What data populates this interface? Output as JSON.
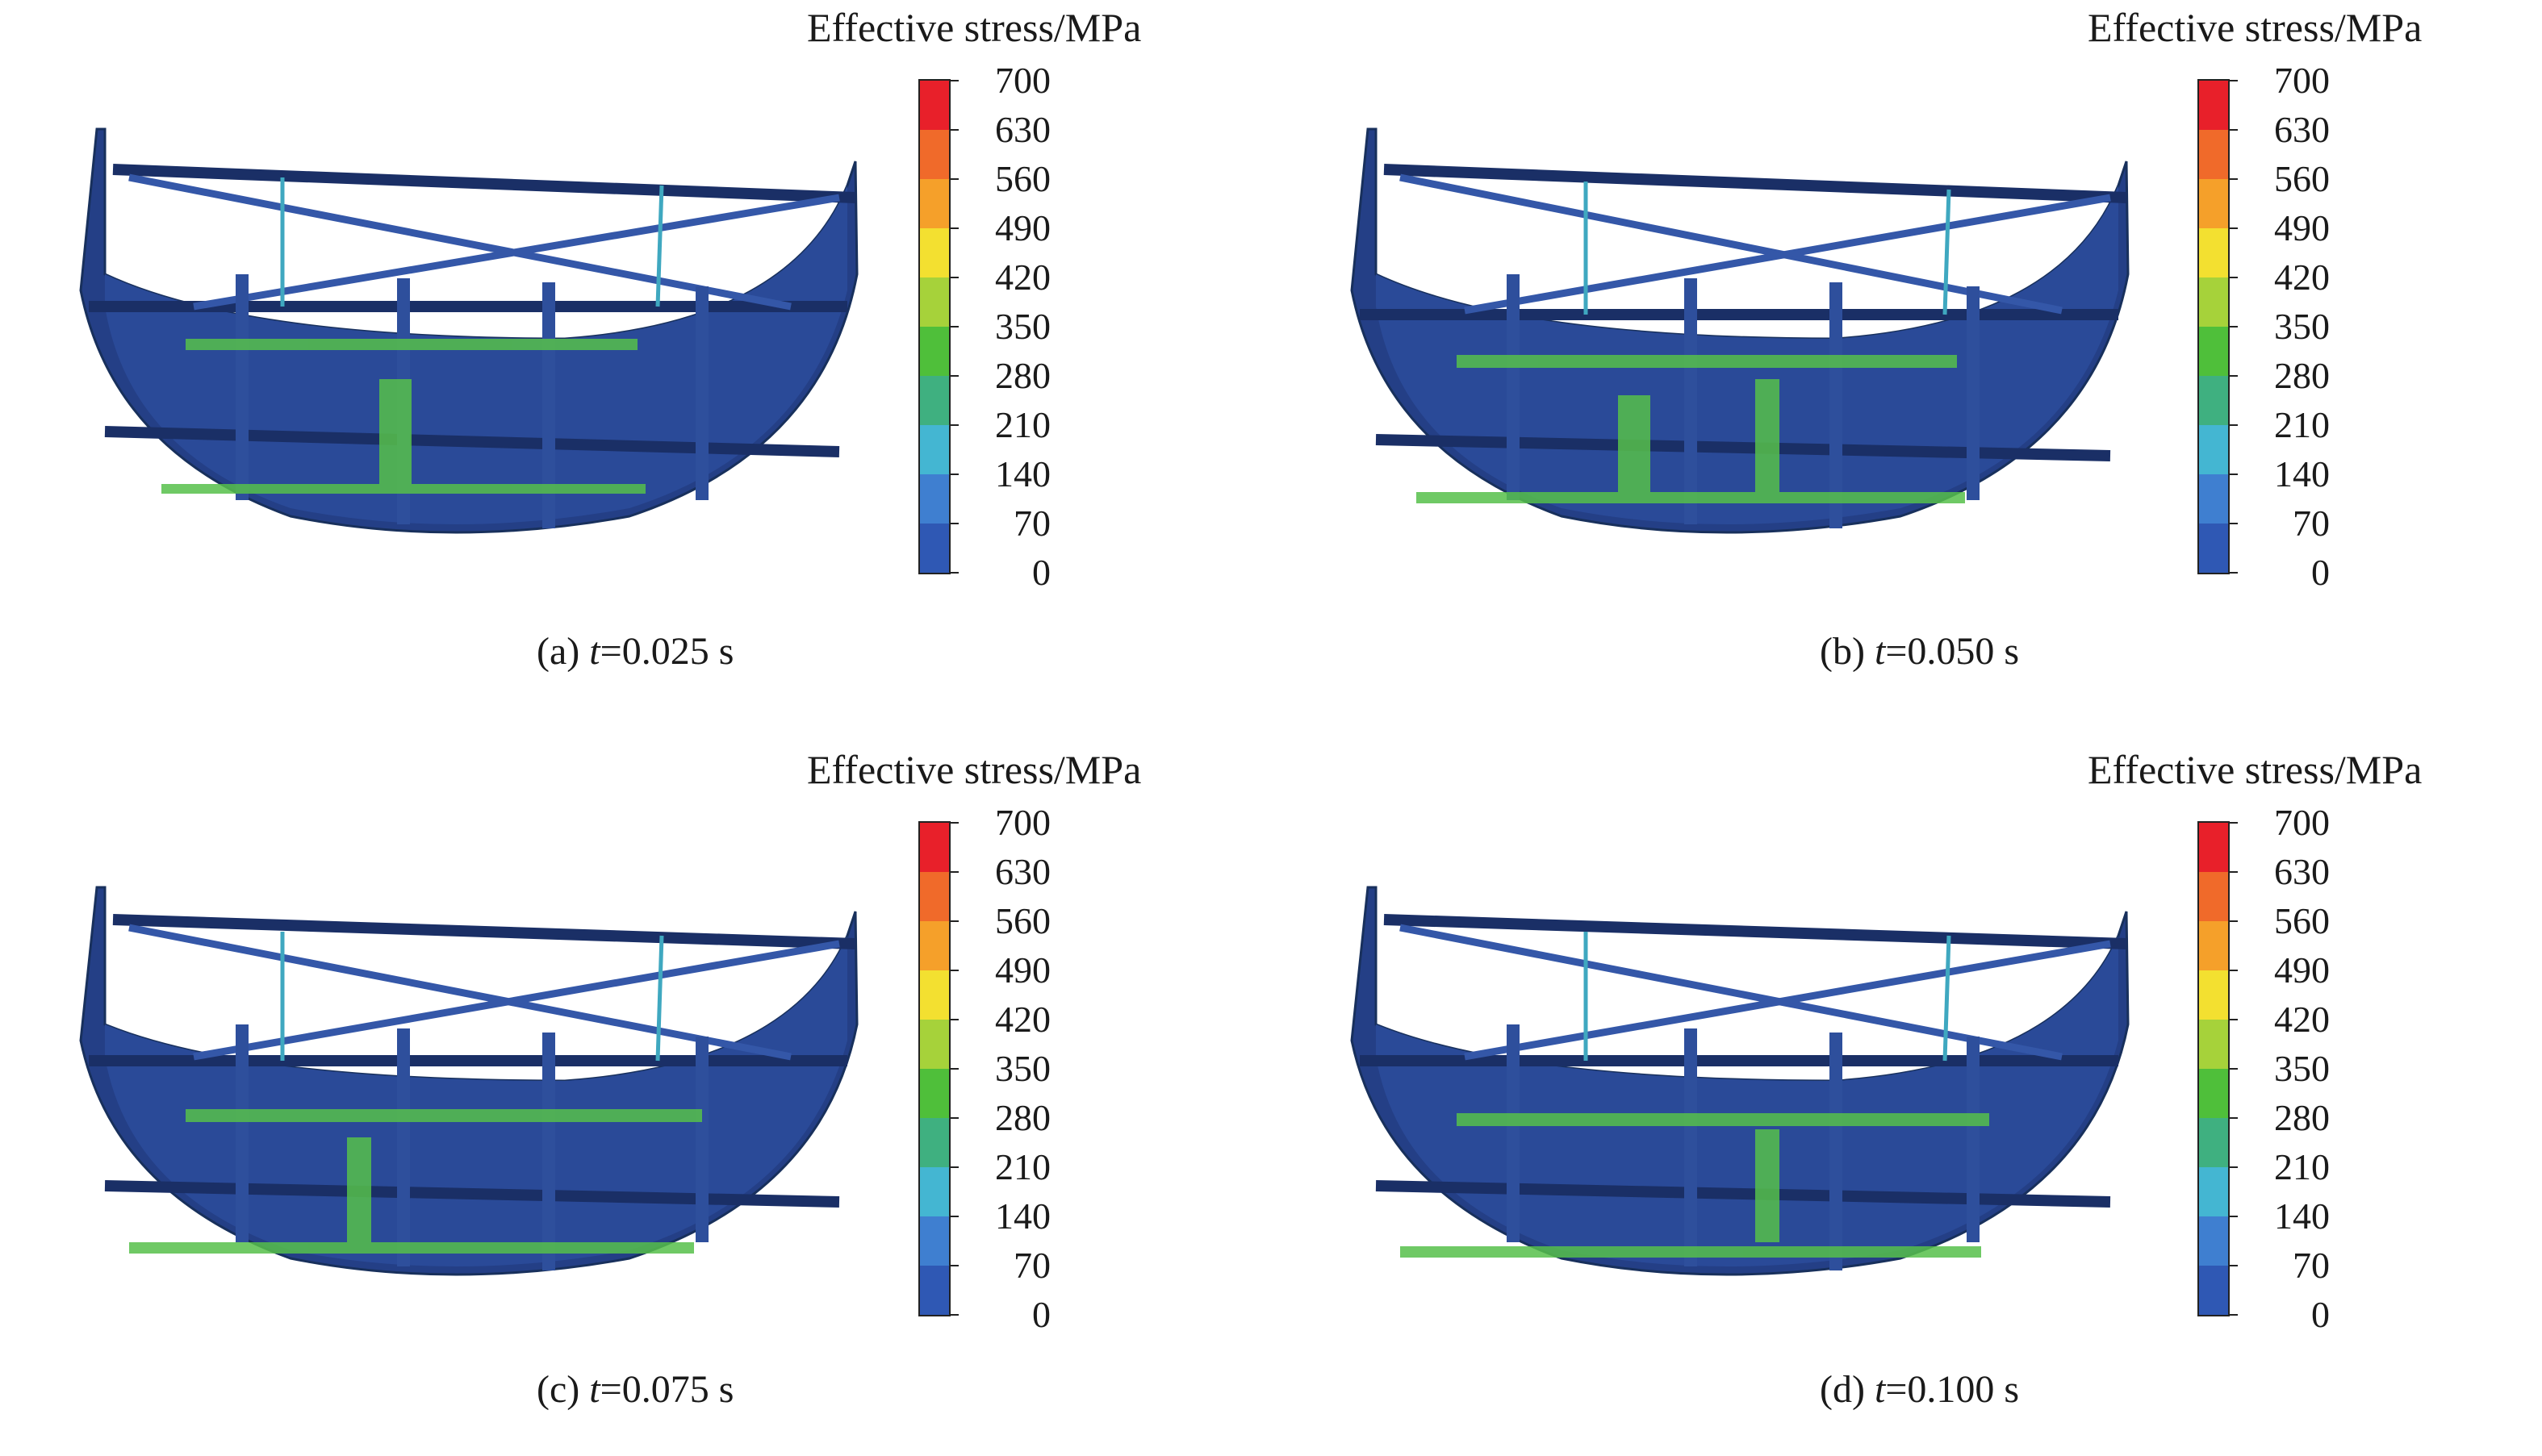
{
  "colorbar": {
    "title": "Effective stress/MPa",
    "ticks": [
      "700",
      "630",
      "560",
      "490",
      "420",
      "350",
      "280",
      "210",
      "140",
      "70",
      "0"
    ],
    "colors": [
      "#e8202a",
      "#f06a2a",
      "#f5a02a",
      "#f3e030",
      "#a6d23a",
      "#4fbf3a",
      "#3fb080",
      "#44b6d2",
      "#3f7fd0",
      "#2f58b4"
    ]
  },
  "panels": [
    {
      "label": "(a) ",
      "var": "t",
      "eq": "=0.025 s"
    },
    {
      "label": "(b) ",
      "var": "t",
      "eq": "=0.050 s"
    },
    {
      "label": "(c) ",
      "var": "t",
      "eq": "=0.075 s"
    },
    {
      "label": "(d) ",
      "var": "t",
      "eq": "=0.100 s"
    }
  ]
}
